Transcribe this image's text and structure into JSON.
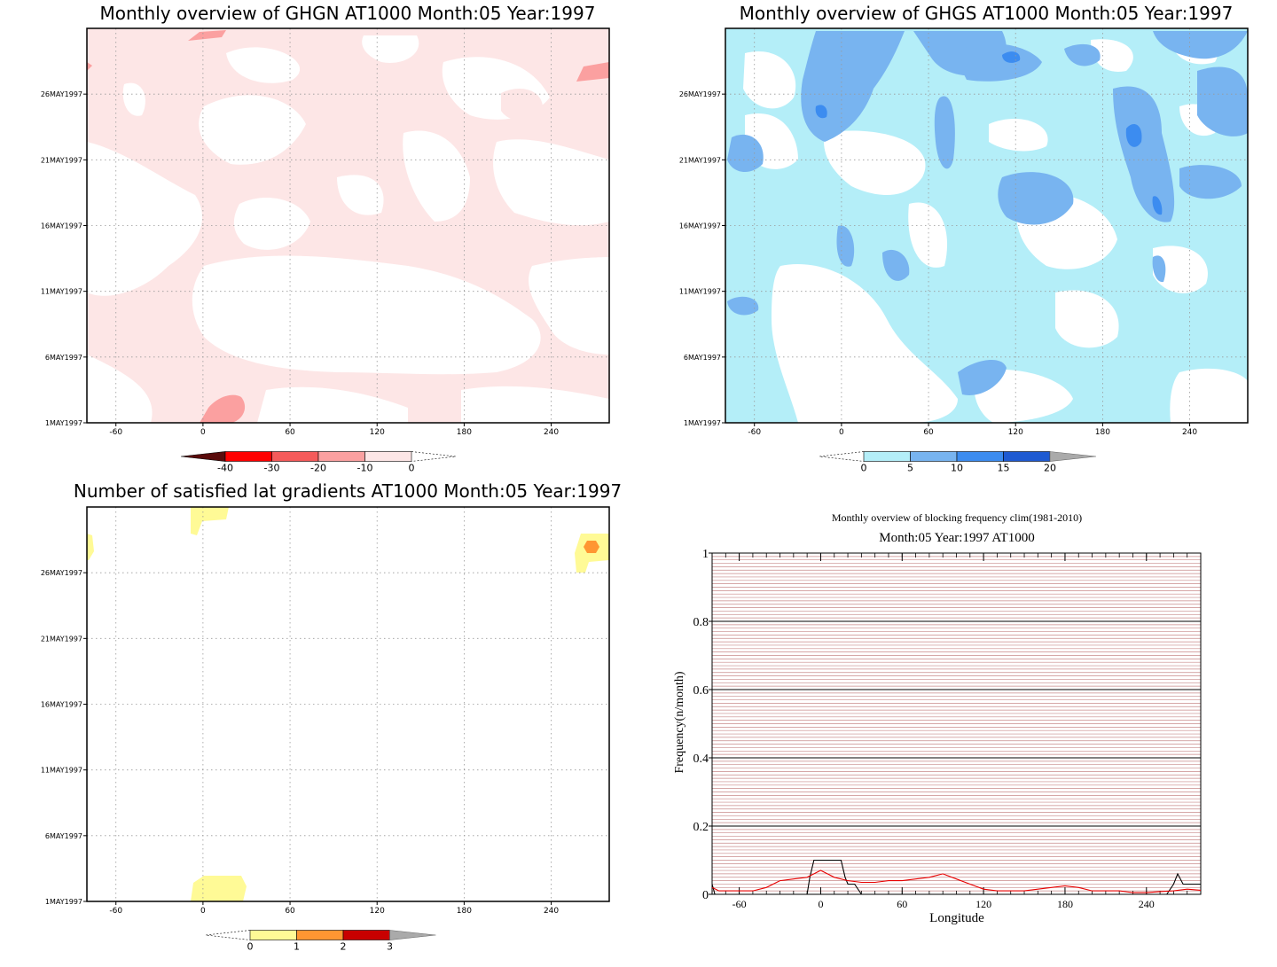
{
  "chart_data": [
    {
      "type": "heatmap",
      "title": "Monthly overview of GHGN AT1000 Month:05 Year:1997",
      "x_ticks": [
        -60,
        0,
        60,
        120,
        180,
        240
      ],
      "x_range": [
        -80,
        280
      ],
      "y_range": [
        1,
        31
      ],
      "y_ticks": [
        {
          "label": "1MAY1997",
          "day": 1
        },
        {
          "label": "6MAY1997",
          "day": 6
        },
        {
          "label": "11MAY1997",
          "day": 11
        },
        {
          "label": "16MAY1997",
          "day": 16
        },
        {
          "label": "21MAY1997",
          "day": 21
        },
        {
          "label": "26MAY1997",
          "day": 26
        }
      ],
      "grid": true,
      "colorbar": {
        "labels": [
          "-40",
          "-30",
          "-20",
          "-10",
          "0"
        ],
        "colors": [
          "#5a0b0b",
          "#ff0000",
          "#f55a5a",
          "#fba0a0",
          "#fde6e6"
        ],
        "extend": "both"
      },
      "fill_levels": [
        {
          "range": [
            -10,
            0
          ],
          "color": "#fde6e6"
        },
        {
          "range": [
            -20,
            -10
          ],
          "color": "#fba0a0"
        },
        {
          "range": [
            -30,
            -20
          ],
          "color": "#f55a5a"
        }
      ]
    },
    {
      "type": "heatmap",
      "title": "Monthly overview of GHGS AT1000 Month:05 Year:1997",
      "x_ticks": [
        -60,
        0,
        60,
        120,
        180,
        240
      ],
      "x_range": [
        -80,
        280
      ],
      "y_range": [
        1,
        31
      ],
      "y_ticks": [
        {
          "label": "1MAY1997",
          "day": 1
        },
        {
          "label": "6MAY1997",
          "day": 6
        },
        {
          "label": "11MAY1997",
          "day": 11
        },
        {
          "label": "16MAY1997",
          "day": 16
        },
        {
          "label": "21MAY1997",
          "day": 21
        },
        {
          "label": "26MAY1997",
          "day": 26
        }
      ],
      "grid": true,
      "colorbar": {
        "labels": [
          "0",
          "5",
          "10",
          "15",
          "20"
        ],
        "colors": [
          "#b4eef8",
          "#78b4f0",
          "#3c8cf0",
          "#1e5ad2",
          "#aaaaaa"
        ],
        "extend": "both"
      },
      "fill_levels": [
        {
          "range": [
            0,
            5
          ],
          "color": "#b4eef8"
        },
        {
          "range": [
            5,
            10
          ],
          "color": "#78b4f0"
        },
        {
          "range": [
            10,
            15
          ],
          "color": "#3c8cf0"
        },
        {
          "range": [
            15,
            20
          ],
          "color": "#1e5ad2"
        }
      ]
    },
    {
      "type": "heatmap",
      "title": "Number of satisfied lat gradients AT1000 Month:05 Year:1997",
      "x_ticks": [
        -60,
        0,
        60,
        120,
        180,
        240
      ],
      "x_range": [
        -80,
        280
      ],
      "y_range": [
        1,
        31
      ],
      "y_ticks": [
        {
          "label": "1MAY1997",
          "day": 1
        },
        {
          "label": "6MAY1997",
          "day": 6
        },
        {
          "label": "11MAY1997",
          "day": 11
        },
        {
          "label": "16MAY1997",
          "day": 16
        },
        {
          "label": "21MAY1997",
          "day": 21
        },
        {
          "label": "26MAY1997",
          "day": 26
        }
      ],
      "grid": true,
      "colorbar": {
        "labels": [
          "0",
          "1",
          "2",
          "3"
        ],
        "colors": [
          "#fffa96",
          "#ff9632",
          "#c80000",
          "#aaaaaa"
        ],
        "extend": "both"
      }
    },
    {
      "type": "line",
      "title": "Monthly overview of blocking frequency clim(1981-2010)",
      "subtitle": "Month:05 Year:1997  AT1000",
      "xlabel": "Longitude",
      "ylabel": "Frequency(n/month)",
      "xlim": [
        -80,
        280
      ],
      "ylim": [
        0,
        1
      ],
      "x_ticks": [
        -60,
        0,
        60,
        120,
        180,
        240
      ],
      "y_ticks": [
        0,
        0.2,
        0.4,
        0.6,
        0.8,
        1
      ],
      "y_tick_labels": [
        "0",
        "0.2",
        "0.4",
        "0.6",
        "0.8",
        "1"
      ],
      "grid": true,
      "series": [
        {
          "color": "#000000",
          "x": [
            -80,
            -78,
            -76,
            -20,
            -10,
            -8,
            -5,
            0,
            15,
            18,
            20,
            25,
            30,
            230,
            255,
            260,
            263,
            267,
            270,
            280
          ],
          "y": [
            0.03,
            0.0,
            0.0,
            0.0,
            0.0,
            0.05,
            0.1,
            0.1,
            0.1,
            0.05,
            0.03,
            0.03,
            0.0,
            0.0,
            0.0,
            0.03,
            0.06,
            0.03,
            0.03,
            0.03
          ]
        },
        {
          "color": "#e80000",
          "x": [
            -80,
            -75,
            -70,
            -60,
            -50,
            -40,
            -30,
            -20,
            -10,
            -5,
            0,
            5,
            10,
            20,
            30,
            40,
            50,
            60,
            70,
            80,
            90,
            100,
            110,
            120,
            130,
            140,
            150,
            160,
            170,
            180,
            190,
            200,
            210,
            220,
            230,
            240,
            250,
            260,
            270,
            280
          ],
          "y": [
            0.02,
            0.01,
            0.01,
            0.01,
            0.01,
            0.02,
            0.04,
            0.045,
            0.05,
            0.06,
            0.07,
            0.06,
            0.05,
            0.04,
            0.035,
            0.035,
            0.04,
            0.04,
            0.045,
            0.05,
            0.06,
            0.045,
            0.03,
            0.015,
            0.01,
            0.01,
            0.01,
            0.015,
            0.02,
            0.025,
            0.02,
            0.01,
            0.01,
            0.01,
            0.005,
            0.005,
            0.008,
            0.01,
            0.015,
            0.012
          ]
        }
      ]
    }
  ]
}
